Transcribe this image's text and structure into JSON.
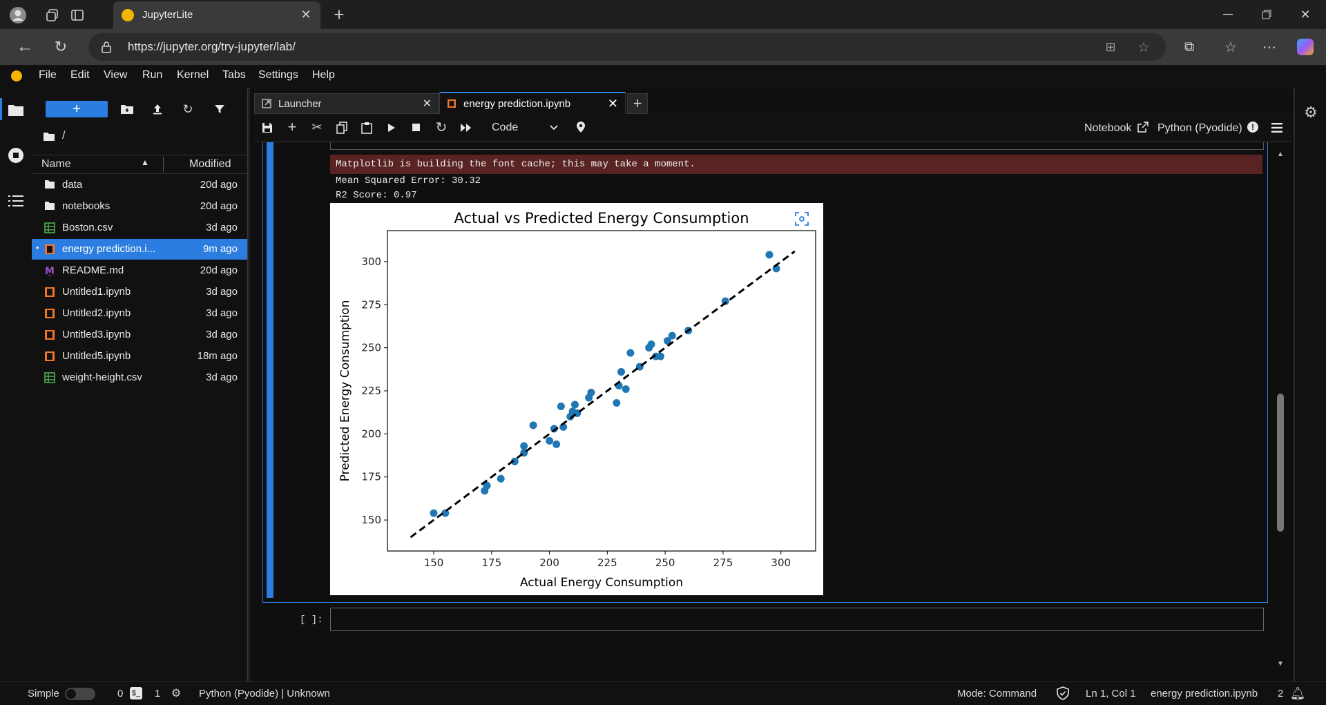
{
  "browser": {
    "tab_title": "JupyterLite",
    "url": "https://jupyter.org/try-jupyter/lab/"
  },
  "menu": [
    "File",
    "Edit",
    "View",
    "Run",
    "Kernel",
    "Tabs",
    "Settings",
    "Help"
  ],
  "filebrowser": {
    "path": "/",
    "col_name": "Name",
    "col_modified": "Modified",
    "files": [
      {
        "name": "data",
        "modified": "20d ago",
        "icon": "folder-icon"
      },
      {
        "name": "notebooks",
        "modified": "20d ago",
        "icon": "folder-icon"
      },
      {
        "name": "Boston.csv",
        "modified": "3d ago",
        "icon": "spreadsheet-icon"
      },
      {
        "name": "energy prediction.i...",
        "modified": "9m ago",
        "icon": "notebook-icon",
        "selected": true
      },
      {
        "name": "README.md",
        "modified": "20d ago",
        "icon": "markdown-icon"
      },
      {
        "name": "Untitled1.ipynb",
        "modified": "3d ago",
        "icon": "notebook-icon"
      },
      {
        "name": "Untitled2.ipynb",
        "modified": "3d ago",
        "icon": "notebook-icon"
      },
      {
        "name": "Untitled3.ipynb",
        "modified": "3d ago",
        "icon": "notebook-icon"
      },
      {
        "name": "Untitled5.ipynb",
        "modified": "18m ago",
        "icon": "notebook-icon"
      },
      {
        "name": "weight-height.csv",
        "modified": "3d ago",
        "icon": "spreadsheet-icon"
      }
    ]
  },
  "tabs": [
    {
      "label": "Launcher"
    },
    {
      "label": "energy prediction.ipynb",
      "active": true
    }
  ],
  "toolbar": {
    "cell_type": "Code",
    "notebook_label": "Notebook",
    "kernel_label": "Python (Pyodide)"
  },
  "output": {
    "stderr": "Matplotlib is building the font cache; this may take a moment.",
    "mse": "Mean Squared Error: 30.32",
    "r2": "R2 Score: 0.97"
  },
  "next_prompt": "[ ]:",
  "chart_data": {
    "type": "scatter",
    "title": "Actual vs Predicted Energy Consumption",
    "xlabel": "Actual Energy Consumption",
    "ylabel": "Predicted Energy Consumption",
    "xlim": [
      130,
      315
    ],
    "ylim": [
      132,
      318
    ],
    "xticks": [
      150,
      175,
      200,
      225,
      250,
      275,
      300
    ],
    "yticks": [
      150,
      175,
      200,
      225,
      250,
      275,
      300
    ],
    "x": [
      150,
      155,
      173,
      172,
      179,
      185,
      189,
      189,
      193,
      200,
      202,
      203,
      205,
      206,
      209,
      210,
      211,
      212,
      217,
      218,
      229,
      230,
      231,
      233,
      235,
      239,
      243,
      244,
      246,
      248,
      251,
      253,
      260,
      276,
      295,
      298
    ],
    "y": [
      154,
      154,
      170,
      167,
      174,
      184,
      189,
      193,
      205,
      196,
      203,
      194,
      216,
      204,
      210,
      213,
      217,
      212,
      221,
      224,
      218,
      228,
      236,
      226,
      247,
      239,
      250,
      252,
      245,
      245,
      254,
      257,
      260,
      277,
      304,
      296
    ],
    "fit_line": {
      "x": [
        140,
        306
      ],
      "y": [
        140,
        306
      ],
      "style": "dashed"
    },
    "point_color": "#1f77b4"
  },
  "status": {
    "mode_label": "Simple",
    "count1": "0",
    "count2": "1",
    "kernel": "Python (Pyodide) | Unknown",
    "mode": "Mode: Command",
    "position": "Ln 1, Col 1",
    "filename": "energy prediction.ipynb",
    "notif": "2"
  }
}
